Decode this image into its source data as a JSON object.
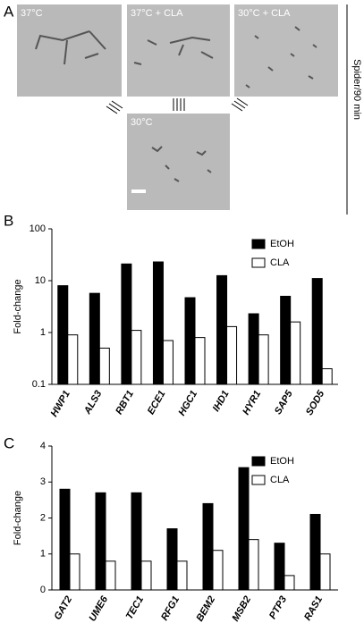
{
  "figure": {
    "panel_labels": [
      "A",
      "B",
      "C"
    ],
    "images": [
      "37°C",
      "37°C + CLA",
      "30°C + CLA",
      "30°C"
    ],
    "side_label": "Spider/90 min"
  },
  "chart_data": [
    {
      "type": "bar",
      "ylabel": "Fold-change",
      "log_y": true,
      "legend": "upper right",
      "categories": [
        "HWP1",
        "ALS3",
        "RBT1",
        "ECE1",
        "HGC1",
        "IHD1",
        "HYR1",
        "SAP5",
        "SOD5"
      ],
      "series": [
        {
          "name": "EtOH",
          "color": "#000000",
          "values": [
            8,
            5.7,
            21,
            23,
            4.7,
            12.5,
            2.3,
            5,
            11
          ]
        },
        {
          "name": "CLA",
          "color": "#ffffff",
          "values": [
            0.9,
            0.5,
            1.1,
            0.7,
            0.8,
            1.3,
            0.9,
            1.6,
            0.2
          ]
        }
      ],
      "ylim": [
        0.1,
        100
      ],
      "yticks": [
        0.1,
        1,
        10,
        100
      ]
    },
    {
      "type": "bar",
      "ylabel": "Fold-change",
      "log_y": false,
      "legend": "upper right",
      "categories": [
        "GAT2",
        "UME6",
        "TEC1",
        "RFG1",
        "BEM2",
        "MSB2",
        "PTP3",
        "RAS1"
      ],
      "series": [
        {
          "name": "EtOH",
          "color": "#000000",
          "values": [
            2.8,
            2.7,
            2.7,
            1.7,
            2.4,
            3.4,
            1.3,
            2.1
          ]
        },
        {
          "name": "CLA",
          "color": "#ffffff",
          "values": [
            1.0,
            0.8,
            0.8,
            0.8,
            1.1,
            1.4,
            0.4,
            1.0
          ]
        }
      ],
      "ylim": [
        0,
        4
      ],
      "yticks": [
        0,
        1,
        2,
        3,
        4
      ]
    }
  ]
}
